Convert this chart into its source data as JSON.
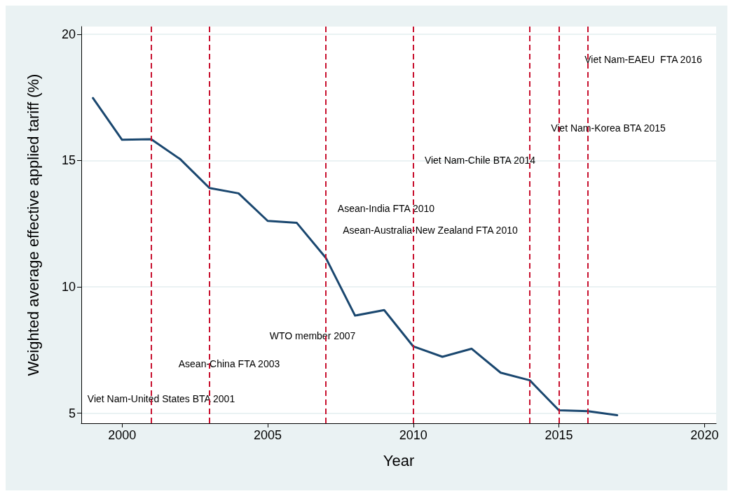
{
  "chart_data": {
    "type": "line",
    "xlabel": "Year",
    "ylabel": "Weighted average effective applied tariff (%)",
    "x": [
      1999,
      2000,
      2001,
      2002,
      2003,
      2004,
      2005,
      2006,
      2007,
      2008,
      2009,
      2010,
      2011,
      2012,
      2013,
      2014,
      2015,
      2016,
      2017
    ],
    "series": [
      {
        "color": "#1a476f",
        "values": [
          17.47,
          15.82,
          15.84,
          15.05,
          13.91,
          13.7,
          12.61,
          12.53,
          11.14,
          8.86,
          9.08,
          7.64,
          7.23,
          7.55,
          6.6,
          6.3,
          5.11,
          5.08,
          4.92
        ]
      }
    ],
    "xlim": [
      1998.6,
      2020.4
    ],
    "xticks": [
      2000,
      2005,
      2010,
      2015,
      2020
    ],
    "ylim": [
      4.6,
      20.3
    ],
    "yticks": [
      5,
      10,
      15,
      20
    ],
    "grid": "y",
    "marker": "none",
    "line_style": "solid",
    "ref_lines": [
      {
        "axis": "x",
        "value": 2001,
        "color": "#c8102e",
        "line_style": "dashed"
      },
      {
        "axis": "x",
        "value": 2003,
        "color": "#c8102e",
        "line_style": "dashed"
      },
      {
        "axis": "x",
        "value": 2007,
        "color": "#c8102e",
        "line_style": "dashed"
      },
      {
        "axis": "x",
        "value": 2010,
        "color": "#c8102e",
        "line_style": "dashed"
      },
      {
        "axis": "x",
        "value": 2014,
        "color": "#c8102e",
        "line_style": "dashed"
      },
      {
        "axis": "x",
        "value": 2015,
        "color": "#c8102e",
        "line_style": "dashed"
      },
      {
        "axis": "x",
        "value": 2016,
        "color": "#c8102e",
        "line_style": "dashed"
      }
    ],
    "annotations": [
      "Viet Nam-United States BTA 2001",
      "Asean-China FTA 2003",
      "WTO member 2007",
      "Asean-Australia-New Zealand FTA 2010",
      "Asean-India FTA 2010",
      "Viet Nam-Chile BTA 2014",
      "Viet Nam-Korea BTA 2015",
      "Viet Nam-EAEU  FTA 2016"
    ]
  }
}
